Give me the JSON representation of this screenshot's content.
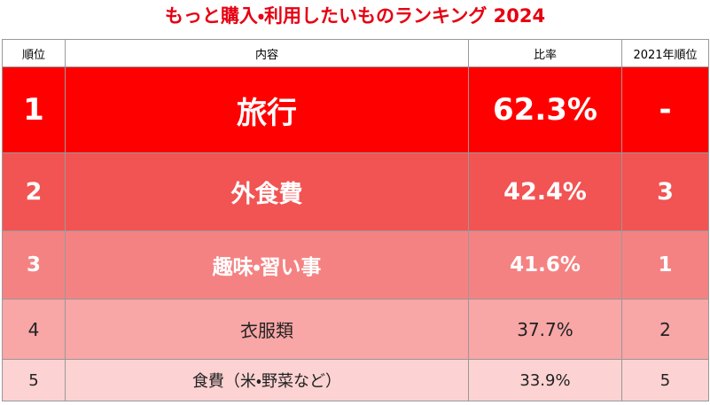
{
  "header": {
    "title": "もっと購入・利用したいものランキング 2024"
  },
  "table": {
    "columns": [
      "順位",
      "内容",
      "比率",
      "2021年順位"
    ],
    "rows": [
      [
        "1",
        "旅行",
        "62.3%",
        "-"
      ],
      [
        "2",
        "外食費",
        "42.4%",
        "3"
      ],
      [
        "3",
        "趣味・習い事",
        "41.6%",
        "1"
      ],
      [
        "4",
        "衣服類",
        "37.7%",
        "2"
      ],
      [
        "5",
        "食費（米・野菜など）",
        "33.9%",
        "5"
      ]
    ]
  }
}
